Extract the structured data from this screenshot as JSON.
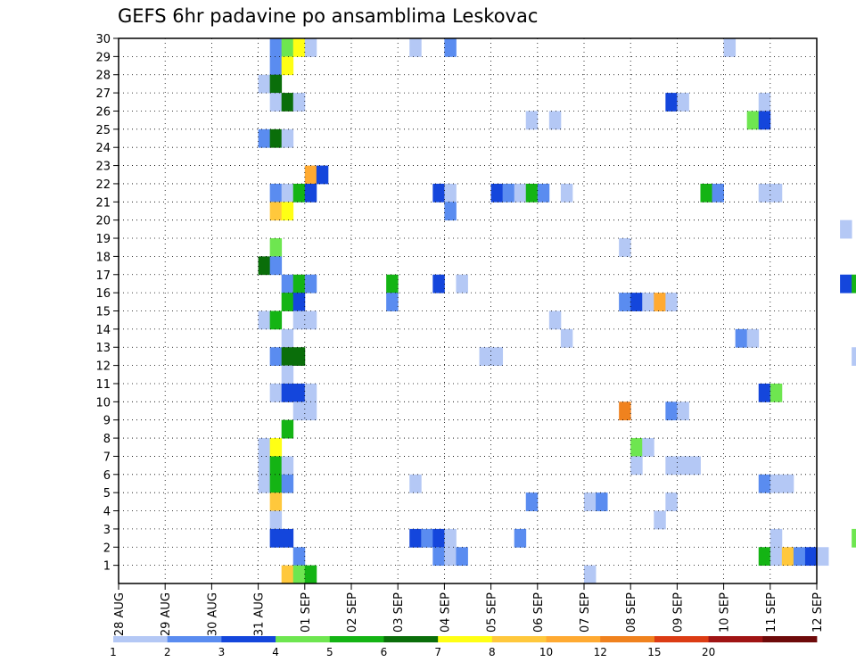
{
  "chart_data": {
    "type": "heatmap",
    "title": "GEFS 6hr padavine po ansamblima Leskovac",
    "xlabel": "",
    "ylabel": "",
    "x_tick_labels": [
      "28 AUG",
      "29 AUG",
      "30 AUG",
      "31 AUG",
      "01 SEP",
      "02 SEP",
      "03 SEP",
      "04 SEP",
      "05 SEP",
      "06 SEP",
      "07 SEP",
      "08 SEP",
      "09 SEP",
      "10 SEP",
      "11 SEP",
      "12 SEP"
    ],
    "y_tick_labels": [
      "1",
      "2",
      "3",
      "4",
      "5",
      "6",
      "7",
      "8",
      "9",
      "10",
      "11",
      "12",
      "13",
      "14",
      "15",
      "16",
      "17",
      "18",
      "19",
      "20",
      "21",
      "22",
      "23",
      "24",
      "25",
      "26",
      "27",
      "28",
      "29",
      "30"
    ],
    "ylim": [
      0,
      30
    ],
    "grid": true,
    "time_step_hours": 6,
    "legend": {
      "position": "bottom",
      "tick_labels": [
        "1",
        "2",
        "3",
        "4",
        "5",
        "6",
        "7",
        "8",
        "10",
        "12",
        "15",
        "20"
      ],
      "colors": [
        "#b4c8f5",
        "#5a8cf0",
        "#1446dc",
        "#6ee650",
        "#14b414",
        "#0a6e0a",
        "#ffff14",
        "#ffc83c",
        "#ffaa32",
        "#f0821e",
        "#dc3c14",
        "#a01414",
        "#6e0a0a"
      ]
    },
    "cells": [
      {
        "member": 30,
        "time": "31 AUG 06Z",
        "value": 2.5
      },
      {
        "member": 30,
        "time": "31 AUG 12Z",
        "value": 4.5
      },
      {
        "member": 30,
        "time": "31 AUG 18Z",
        "value": 7.5
      },
      {
        "member": 30,
        "time": "01 SEP 00Z",
        "value": 1.5
      },
      {
        "member": 30,
        "time": "03 SEP 06Z",
        "value": 1.5
      },
      {
        "member": 30,
        "time": "04 SEP 00Z",
        "value": 2.5
      },
      {
        "member": 30,
        "time": "10 SEP 00Z",
        "value": 1.5
      },
      {
        "member": 29,
        "time": "31 AUG 06Z",
        "value": 2.5
      },
      {
        "member": 29,
        "time": "31 AUG 12Z",
        "value": 7.5
      },
      {
        "member": 28,
        "time": "31 AUG 00Z",
        "value": 1.5
      },
      {
        "member": 28,
        "time": "31 AUG 06Z",
        "value": 6.5
      },
      {
        "member": 27,
        "time": "31 AUG 06Z",
        "value": 1.5
      },
      {
        "member": 27,
        "time": "31 AUG 12Z",
        "value": 6.5
      },
      {
        "member": 27,
        "time": "31 AUG 18Z",
        "value": 1.5
      },
      {
        "member": 27,
        "time": "08 SEP 18Z",
        "value": 3.5
      },
      {
        "member": 27,
        "time": "09 SEP 00Z",
        "value": 1.5
      },
      {
        "member": 27,
        "time": "10 SEP 18Z",
        "value": 1.5
      },
      {
        "member": 26,
        "time": "05 SEP 18Z",
        "value": 1.5
      },
      {
        "member": 26,
        "time": "06 SEP 06Z",
        "value": 1.5
      },
      {
        "member": 26,
        "time": "10 SEP 12Z",
        "value": 4.5
      },
      {
        "member": 26,
        "time": "10 SEP 18Z",
        "value": 3.5
      },
      {
        "member": 25,
        "time": "31 AUG 00Z",
        "value": 2.5
      },
      {
        "member": 25,
        "time": "31 AUG 06Z",
        "value": 6.5
      },
      {
        "member": 25,
        "time": "31 AUG 12Z",
        "value": 1.5
      },
      {
        "member": 23,
        "time": "01 SEP 00Z",
        "value": 11
      },
      {
        "member": 23,
        "time": "01 SEP 06Z",
        "value": 3.5
      },
      {
        "member": 22,
        "time": "31 AUG 06Z",
        "value": 2.5
      },
      {
        "member": 22,
        "time": "31 AUG 12Z",
        "value": 1.5
      },
      {
        "member": 22,
        "time": "31 AUG 18Z",
        "value": 5.5
      },
      {
        "member": 22,
        "time": "01 SEP 00Z",
        "value": 3.5
      },
      {
        "member": 22,
        "time": "03 SEP 18Z",
        "value": 3.5
      },
      {
        "member": 22,
        "time": "04 SEP 00Z",
        "value": 1.5
      },
      {
        "member": 22,
        "time": "05 SEP 00Z",
        "value": 3.5
      },
      {
        "member": 22,
        "time": "05 SEP 06Z",
        "value": 2.5
      },
      {
        "member": 22,
        "time": "05 SEP 12Z",
        "value": 1.5
      },
      {
        "member": 22,
        "time": "05 SEP 18Z",
        "value": 5.5
      },
      {
        "member": 22,
        "time": "06 SEP 00Z",
        "value": 2.5
      },
      {
        "member": 22,
        "time": "06 SEP 12Z",
        "value": 1.5
      },
      {
        "member": 22,
        "time": "09 SEP 12Z",
        "value": 5.5
      },
      {
        "member": 22,
        "time": "09 SEP 18Z",
        "value": 2.5
      },
      {
        "member": 22,
        "time": "10 SEP 18Z",
        "value": 1.5
      },
      {
        "member": 22,
        "time": "11 SEP 00Z",
        "value": 1.5
      },
      {
        "member": 21,
        "time": "31 AUG 06Z",
        "value": 9
      },
      {
        "member": 21,
        "time": "31 AUG 12Z",
        "value": 7.5
      },
      {
        "member": 21,
        "time": "04 SEP 00Z",
        "value": 2.5
      },
      {
        "member": 20,
        "time": "12 SEP 12Z",
        "value": 1.5
      },
      {
        "member": 19,
        "time": "31 AUG 06Z",
        "value": 4.5
      },
      {
        "member": 19,
        "time": "07 SEP 18Z",
        "value": 1.5
      },
      {
        "member": 18,
        "time": "31 AUG 00Z",
        "value": 6.5
      },
      {
        "member": 18,
        "time": "31 AUG 06Z",
        "value": 2.5
      },
      {
        "member": 17,
        "time": "31 AUG 12Z",
        "value": 2.5
      },
      {
        "member": 17,
        "time": "31 AUG 18Z",
        "value": 5.5
      },
      {
        "member": 17,
        "time": "01 SEP 00Z",
        "value": 2.5
      },
      {
        "member": 17,
        "time": "02 SEP 18Z",
        "value": 5.5
      },
      {
        "member": 17,
        "time": "03 SEP 18Z",
        "value": 3.5
      },
      {
        "member": 17,
        "time": "04 SEP 06Z",
        "value": 1.5
      },
      {
        "member": 17,
        "time": "12 SEP 12Z",
        "value": 3.5
      },
      {
        "member": 17,
        "time": "12 SEP 18Z",
        "value": 5.5
      },
      {
        "member": 16,
        "time": "31 AUG 12Z",
        "value": 5.5
      },
      {
        "member": 16,
        "time": "31 AUG 18Z",
        "value": 3.5
      },
      {
        "member": 16,
        "time": "02 SEP 18Z",
        "value": 2.5
      },
      {
        "member": 16,
        "time": "07 SEP 18Z",
        "value": 2.5
      },
      {
        "member": 16,
        "time": "08 SEP 00Z",
        "value": 3.5
      },
      {
        "member": 16,
        "time": "08 SEP 06Z",
        "value": 1.5
      },
      {
        "member": 16,
        "time": "08 SEP 12Z",
        "value": 11
      },
      {
        "member": 16,
        "time": "08 SEP 18Z",
        "value": 1.5
      },
      {
        "member": 15,
        "time": "31 AUG 00Z",
        "value": 1.5
      },
      {
        "member": 15,
        "time": "31 AUG 06Z",
        "value": 5.5
      },
      {
        "member": 15,
        "time": "31 AUG 18Z",
        "value": 1.5
      },
      {
        "member": 15,
        "time": "01 SEP 00Z",
        "value": 1.5
      },
      {
        "member": 15,
        "time": "06 SEP 06Z",
        "value": 1.5
      },
      {
        "member": 14,
        "time": "31 AUG 12Z",
        "value": 1.5
      },
      {
        "member": 14,
        "time": "06 SEP 12Z",
        "value": 1.5
      },
      {
        "member": 14,
        "time": "10 SEP 06Z",
        "value": 2.5
      },
      {
        "member": 14,
        "time": "10 SEP 12Z",
        "value": 1.5
      },
      {
        "member": 13,
        "time": "31 AUG 06Z",
        "value": 2.5
      },
      {
        "member": 13,
        "time": "31 AUG 12Z",
        "value": 6.5
      },
      {
        "member": 13,
        "time": "31 AUG 18Z",
        "value": 6.5
      },
      {
        "member": 13,
        "time": "04 SEP 18Z",
        "value": 1.5
      },
      {
        "member": 13,
        "time": "05 SEP 00Z",
        "value": 1.5
      },
      {
        "member": 13,
        "time": "12 SEP 18Z",
        "value": 1.5
      },
      {
        "member": 12,
        "time": "31 AUG 12Z",
        "value": 1.5
      },
      {
        "member": 11,
        "time": "31 AUG 06Z",
        "value": 1.5
      },
      {
        "member": 11,
        "time": "31 AUG 12Z",
        "value": 3.5
      },
      {
        "member": 11,
        "time": "31 AUG 18Z",
        "value": 3.5
      },
      {
        "member": 11,
        "time": "01 SEP 00Z",
        "value": 1.5
      },
      {
        "member": 11,
        "time": "10 SEP 18Z",
        "value": 3.5
      },
      {
        "member": 11,
        "time": "11 SEP 00Z",
        "value": 4.5
      },
      {
        "member": 10,
        "time": "31 AUG 18Z",
        "value": 1.5
      },
      {
        "member": 10,
        "time": "01 SEP 00Z",
        "value": 1.5
      },
      {
        "member": 10,
        "time": "07 SEP 18Z",
        "value": 13
      },
      {
        "member": 10,
        "time": "08 SEP 18Z",
        "value": 2.5
      },
      {
        "member": 10,
        "time": "09 SEP 00Z",
        "value": 1.5
      },
      {
        "member": 9,
        "time": "31 AUG 12Z",
        "value": 5.5
      },
      {
        "member": 8,
        "time": "31 AUG 00Z",
        "value": 1.5
      },
      {
        "member": 8,
        "time": "31 AUG 06Z",
        "value": 7.5
      },
      {
        "member": 8,
        "time": "08 SEP 00Z",
        "value": 4.5
      },
      {
        "member": 8,
        "time": "08 SEP 06Z",
        "value": 1.5
      },
      {
        "member": 7,
        "time": "31 AUG 00Z",
        "value": 1.5
      },
      {
        "member": 7,
        "time": "31 AUG 06Z",
        "value": 5.5
      },
      {
        "member": 7,
        "time": "31 AUG 12Z",
        "value": 1.5
      },
      {
        "member": 7,
        "time": "08 SEP 00Z",
        "value": 1.5
      },
      {
        "member": 7,
        "time": "08 SEP 18Z",
        "value": 1.5
      },
      {
        "member": 7,
        "time": "09 SEP 00Z",
        "value": 1.5
      },
      {
        "member": 7,
        "time": "09 SEP 06Z",
        "value": 1.5
      },
      {
        "member": 6,
        "time": "31 AUG 00Z",
        "value": 1.5
      },
      {
        "member": 6,
        "time": "31 AUG 06Z",
        "value": 5.5
      },
      {
        "member": 6,
        "time": "31 AUG 12Z",
        "value": 2.5
      },
      {
        "member": 6,
        "time": "03 SEP 06Z",
        "value": 1.5
      },
      {
        "member": 6,
        "time": "10 SEP 18Z",
        "value": 2.5
      },
      {
        "member": 6,
        "time": "11 SEP 00Z",
        "value": 1.5
      },
      {
        "member": 6,
        "time": "11 SEP 06Z",
        "value": 1.5
      },
      {
        "member": 5,
        "time": "31 AUG 06Z",
        "value": 9
      },
      {
        "member": 5,
        "time": "05 SEP 18Z",
        "value": 2.5
      },
      {
        "member": 5,
        "time": "07 SEP 00Z",
        "value": 1.5
      },
      {
        "member": 5,
        "time": "07 SEP 06Z",
        "value": 2.5
      },
      {
        "member": 5,
        "time": "08 SEP 18Z",
        "value": 1.5
      },
      {
        "member": 4,
        "time": "31 AUG 06Z",
        "value": 1.5
      },
      {
        "member": 4,
        "time": "08 SEP 12Z",
        "value": 1.5
      },
      {
        "member": 3,
        "time": "31 AUG 06Z",
        "value": 3.5
      },
      {
        "member": 3,
        "time": "31 AUG 12Z",
        "value": 3.5
      },
      {
        "member": 3,
        "time": "03 SEP 06Z",
        "value": 3.5
      },
      {
        "member": 3,
        "time": "03 SEP 12Z",
        "value": 2.5
      },
      {
        "member": 3,
        "time": "03 SEP 18Z",
        "value": 3.5
      },
      {
        "member": 3,
        "time": "04 SEP 00Z",
        "value": 1.5
      },
      {
        "member": 3,
        "time": "05 SEP 12Z",
        "value": 2.5
      },
      {
        "member": 3,
        "time": "11 SEP 00Z",
        "value": 1.5
      },
      {
        "member": 3,
        "time": "12 SEP 18Z",
        "value": 4.5
      },
      {
        "member": 2,
        "time": "31 AUG 18Z",
        "value": 2.5
      },
      {
        "member": 2,
        "time": "03 SEP 18Z",
        "value": 2.5
      },
      {
        "member": 2,
        "time": "04 SEP 00Z",
        "value": 1.5
      },
      {
        "member": 2,
        "time": "04 SEP 06Z",
        "value": 2.5
      },
      {
        "member": 2,
        "time": "10 SEP 18Z",
        "value": 5.5
      },
      {
        "member": 2,
        "time": "11 SEP 00Z",
        "value": 1.5
      },
      {
        "member": 2,
        "time": "11 SEP 06Z",
        "value": 9
      },
      {
        "member": 2,
        "time": "11 SEP 12Z",
        "value": 2.5
      },
      {
        "member": 2,
        "time": "11 SEP 18Z",
        "value": 3.5
      },
      {
        "member": 2,
        "time": "12 SEP 00Z",
        "value": 1.5
      },
      {
        "member": 1,
        "time": "31 AUG 12Z",
        "value": 9
      },
      {
        "member": 1,
        "time": "31 AUG 18Z",
        "value": 4.5
      },
      {
        "member": 1,
        "time": "01 SEP 00Z",
        "value": 5.5
      },
      {
        "member": 1,
        "time": "07 SEP 00Z",
        "value": 1.5
      }
    ]
  }
}
